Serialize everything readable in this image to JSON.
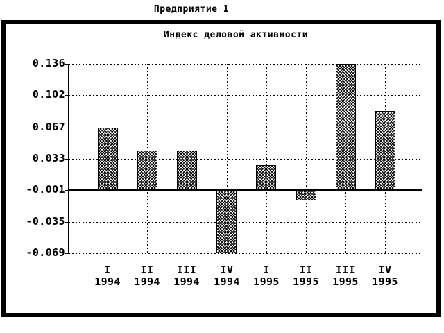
{
  "app_title": "Предприятие 1",
  "chart_data": {
    "type": "bar",
    "title": "Индекс деловой активности",
    "categories": [
      {
        "quarter": "I",
        "year": "1994"
      },
      {
        "quarter": "II",
        "year": "1994"
      },
      {
        "quarter": "III",
        "year": "1994"
      },
      {
        "quarter": "IV",
        "year": "1994"
      },
      {
        "quarter": "I",
        "year": "1995"
      },
      {
        "quarter": "II",
        "year": "1995"
      },
      {
        "quarter": "III",
        "year": "1995"
      },
      {
        "quarter": "IV",
        "year": "1995"
      }
    ],
    "values": [
      0.067,
      0.042,
      0.042,
      -0.069,
      0.026,
      -0.012,
      0.136,
      0.085
    ],
    "y_ticks": [
      0.136,
      0.102,
      0.067,
      0.033,
      -0.001,
      -0.035,
      -0.069
    ],
    "y_tick_labels": [
      "0.136",
      "0.102",
      "0.067",
      "0.033",
      "-0.001",
      "-0.035",
      "-0.069"
    ],
    "baseline": -0.001,
    "ylim": [
      -0.069,
      0.136
    ],
    "grid": true,
    "legend_position": "none",
    "bar_fill": "crosshatch",
    "colors": {
      "foreground": "#000000",
      "background": "#ffffff"
    }
  }
}
